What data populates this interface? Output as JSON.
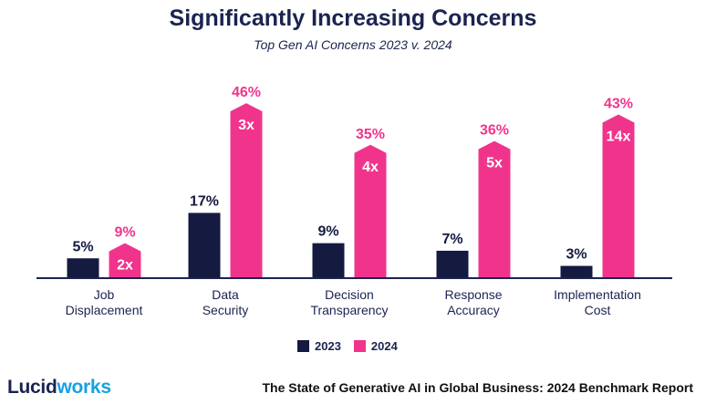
{
  "chart_data": {
    "type": "bar",
    "title": "Significantly Increasing Concerns",
    "subtitle": "Top Gen AI Concerns 2023 v. 2024",
    "categories": [
      [
        "Job",
        "Displacement"
      ],
      [
        "Data",
        "Security"
      ],
      [
        "Decision",
        "Transparency"
      ],
      [
        "Response",
        "Accuracy"
      ],
      [
        "Implementation",
        "Cost"
      ]
    ],
    "series": [
      {
        "name": "2023",
        "color": "#141a40",
        "values": [
          5,
          17,
          9,
          7,
          3
        ],
        "labels": [
          "5%",
          "17%",
          "9%",
          "7%",
          "3%"
        ]
      },
      {
        "name": "2024",
        "color": "#f0348c",
        "values": [
          9,
          46,
          35,
          36,
          43
        ],
        "labels": [
          "9%",
          "46%",
          "35%",
          "36%",
          "43%"
        ]
      }
    ],
    "multipliers": [
      "2x",
      "3x",
      "4x",
      "5x",
      "14x"
    ],
    "ylim": [
      0,
      50
    ],
    "grid": false,
    "legend_position": "bottom-center"
  },
  "footer": {
    "logo_main": "Lucid",
    "logo_accent": "works",
    "report": "The State of Generative AI in Global Business: 2024 Benchmark Report"
  }
}
